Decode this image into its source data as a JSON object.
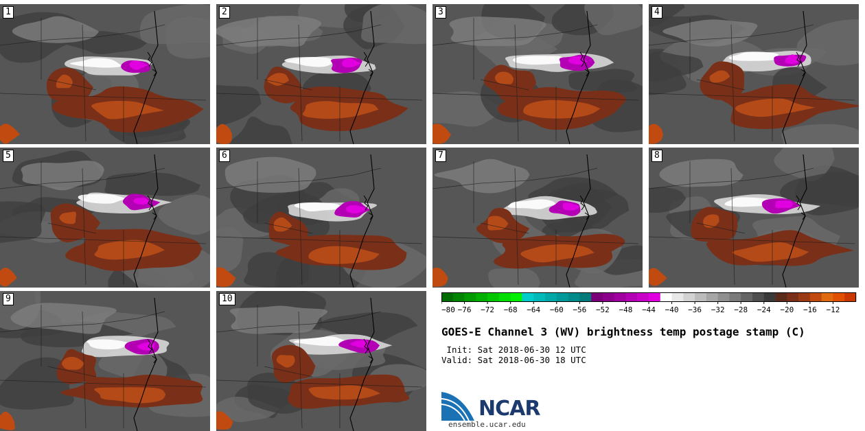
{
  "panels": [
    {
      "label": "1"
    },
    {
      "label": "2"
    },
    {
      "label": "3"
    },
    {
      "label": "4"
    },
    {
      "label": "5"
    },
    {
      "label": "6"
    },
    {
      "label": "7"
    },
    {
      "label": "8"
    },
    {
      "label": "9"
    },
    {
      "label": "10"
    }
  ],
  "colorbar": {
    "bins": [
      {
        "min": -80,
        "color": "#006b00"
      },
      {
        "min": -78,
        "color": "#008400"
      },
      {
        "min": -76,
        "color": "#009a00"
      },
      {
        "min": -74,
        "color": "#00b000"
      },
      {
        "min": -72,
        "color": "#00c600"
      },
      {
        "min": -70,
        "color": "#00de00"
      },
      {
        "min": -68,
        "color": "#00f000"
      },
      {
        "min": -66,
        "color": "#00cccc"
      },
      {
        "min": -64,
        "color": "#00baba"
      },
      {
        "min": -62,
        "color": "#00a8a8"
      },
      {
        "min": -60,
        "color": "#009999"
      },
      {
        "min": -58,
        "color": "#008a8a"
      },
      {
        "min": -56,
        "color": "#007a7a"
      },
      {
        "min": -54,
        "color": "#7a007a"
      },
      {
        "min": -52,
        "color": "#8c008c"
      },
      {
        "min": -50,
        "color": "#a000a0"
      },
      {
        "min": -48,
        "color": "#b400b4"
      },
      {
        "min": -46,
        "color": "#c800c8"
      },
      {
        "min": -44,
        "color": "#e000e0"
      },
      {
        "min": -42,
        "color": "#ffffff"
      },
      {
        "min": -40,
        "color": "#e8e8e8"
      },
      {
        "min": -38,
        "color": "#d2d2d2"
      },
      {
        "min": -36,
        "color": "#bcbcbc"
      },
      {
        "min": -34,
        "color": "#a6a6a6"
      },
      {
        "min": -32,
        "color": "#909090"
      },
      {
        "min": -30,
        "color": "#7a7a7a"
      },
      {
        "min": -28,
        "color": "#646464"
      },
      {
        "min": -26,
        "color": "#4e4e4e"
      },
      {
        "min": -24,
        "color": "#3a3a3a"
      },
      {
        "min": -22,
        "color": "#5a2a1a"
      },
      {
        "min": -20,
        "color": "#7a3018"
      },
      {
        "min": -18,
        "color": "#9a3a14"
      },
      {
        "min": -16,
        "color": "#c04a10"
      },
      {
        "min": -14,
        "color": "#e06a10"
      },
      {
        "min": -12,
        "color": "#e05000"
      },
      {
        "min": -10,
        "color": "#c83800"
      }
    ],
    "tick_labels": [
      "−80",
      "−76",
      "−72",
      "−68",
      "−64",
      "−60",
      "−56",
      "−52",
      "−48",
      "−44",
      "−40",
      "−36",
      "−32",
      "−28",
      "−24",
      "−20",
      "−16",
      "−12"
    ]
  },
  "title": "GOES-E Channel 3 (WV) brightness temp postage stamp (C)",
  "init_line": " Init: Sat 2018-06-30 12 UTC",
  "valid_line": "Valid: Sat 2018-06-30 18 UTC",
  "logo_text": "NCAR",
  "website": "ensemble.ucar.edu",
  "colors": {
    "logo_blue": "#1a72b5",
    "logo_text": "#1c3a6e"
  }
}
